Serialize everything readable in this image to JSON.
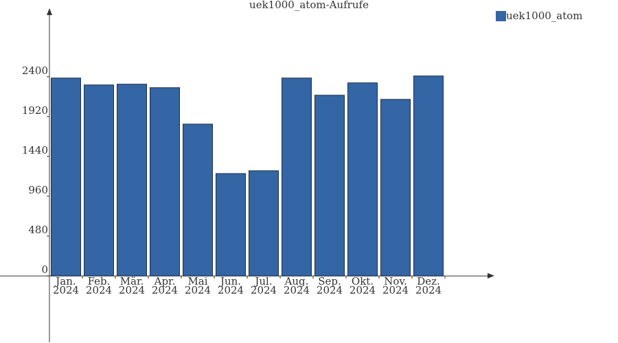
{
  "chart_data": {
    "type": "bar",
    "title": "uek1000_atom-Aufrufe",
    "categories": [
      "Jan. 2024",
      "Feb. 2024",
      "Mär. 2024",
      "Apr. 2024",
      "Mai 2024",
      "Jun. 2024",
      "Jul. 2024",
      "Aug. 2024",
      "Sep. 2024",
      "Okt. 2024",
      "Nov. 2024",
      "Dez. 2024"
    ],
    "series": [
      {
        "name": "uek1000_atom",
        "color": "#3465a4",
        "values": [
          2384,
          2301,
          2310,
          2268,
          1829,
          1233,
          1267,
          2384,
          2177,
          2326,
          2127,
          2409
        ]
      }
    ],
    "ylim": [
      -800,
      3200
    ],
    "yticks": [
      0,
      480,
      960,
      1440,
      1920,
      2400
    ],
    "legend": "top-right"
  }
}
